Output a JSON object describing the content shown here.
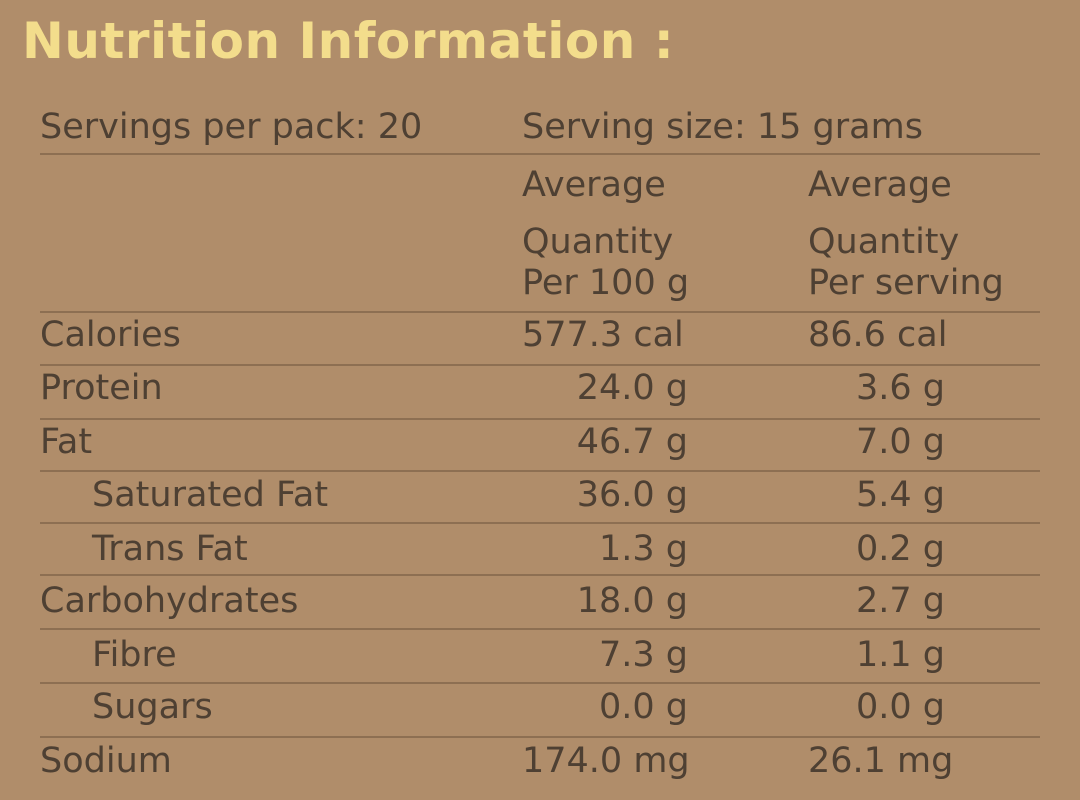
{
  "title": "Nutrition Information :",
  "servings_per_pack": "Servings per pack: 20",
  "serving_size": "Serving size: 15 grams",
  "col_per100": [
    "Average",
    "Quantity",
    "Per 100 g"
  ],
  "col_serving": [
    "Average",
    "Quantity",
    "Per serving"
  ],
  "rows": [
    {
      "name": "Calories",
      "per100": "577.3 cal",
      "serving": "86.6 cal"
    },
    {
      "name": "Protein",
      "per100": "24.0 g",
      "serving": "3.6 g"
    },
    {
      "name": "Fat",
      "per100": "46.7 g",
      "serving": "7.0 g"
    },
    {
      "name": "Saturated Fat",
      "per100": "36.0 g",
      "serving": "5.4 g"
    },
    {
      "name": "Trans Fat",
      "per100": "1.3 g",
      "serving": "0.2 g"
    },
    {
      "name": "Carbohydrates",
      "per100": "18.0 g",
      "serving": "2.7 g"
    },
    {
      "name": "Fibre",
      "per100": "7.3 g",
      "serving": "1.1 g"
    },
    {
      "name": "Sugars",
      "per100": "0.0 g",
      "serving": "0.0 g"
    },
    {
      "name": "Sodium",
      "per100": "174.0 mg",
      "serving": "26.1 mg"
    }
  ]
}
